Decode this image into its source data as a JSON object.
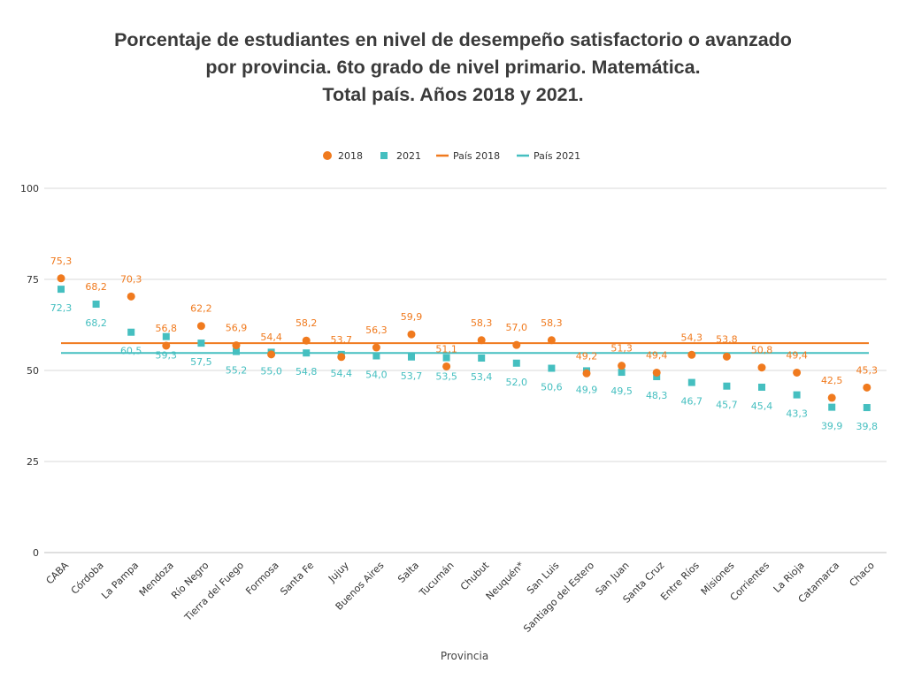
{
  "chart_data": {
    "type": "scatter",
    "title_lines": [
      "Porcentaje de estudiantes en nivel de desempeño satisfactorio o avanzado",
      "por provincia. 6to grado de nivel primario. Matemática.",
      "Total país. Años 2018 y 2021."
    ],
    "xlabel": "Provincia",
    "ylabel": "",
    "ylim": [
      0,
      100
    ],
    "yticks": [
      "0",
      "25",
      "50",
      "75",
      "100"
    ],
    "grid": true,
    "legend_position": "top",
    "categories": [
      "CABA",
      "Córdoba",
      "La Pampa",
      "Mendoza",
      "Río Negro",
      "Tierra del Fuego",
      "Formosa",
      "Santa Fe",
      "Jujuy",
      "Buenos Aires",
      "Salta",
      "Tucumán",
      "Chubut",
      "Neuquén*",
      "San Luis",
      "Santiago del Estero",
      "San Juan",
      "Santa Cruz",
      "Entre Ríos",
      "Misiones",
      "Corrientes",
      "La Rioja",
      "Catamarca",
      "Chaco"
    ],
    "series": [
      {
        "name": "2018",
        "marker": "circle",
        "color": "#f07a1e",
        "values": [
          75.3,
          68.2,
          70.3,
          56.8,
          62.2,
          56.9,
          54.4,
          58.2,
          53.7,
          56.3,
          59.9,
          51.1,
          58.3,
          57.0,
          58.3,
          49.2,
          51.3,
          49.4,
          54.3,
          53.8,
          50.8,
          49.4,
          42.5,
          45.3
        ],
        "labels": [
          "75,3",
          "68,2",
          "70,3",
          "56,8",
          "62,2",
          "56,9",
          "54,4",
          "58,2",
          "53,7",
          "56,3",
          "59,9",
          "51,1",
          "58,3",
          "57,0",
          "58,3",
          "49,2",
          "51,3",
          "49,4",
          "54,3",
          "53,8",
          "50,8",
          "49,4",
          "42,5",
          "45,3"
        ],
        "show_marker": [
          true,
          false,
          true,
          true,
          true,
          true,
          true,
          true,
          true,
          true,
          true,
          true,
          true,
          true,
          true,
          true,
          true,
          true,
          true,
          true,
          true,
          true,
          true,
          true
        ]
      },
      {
        "name": "2021",
        "marker": "square",
        "color": "#45bfc0",
        "values": [
          72.3,
          68.2,
          60.5,
          59.3,
          57.5,
          55.2,
          55.0,
          54.8,
          54.4,
          54.0,
          53.7,
          53.5,
          53.4,
          52.0,
          50.6,
          49.9,
          49.5,
          48.3,
          46.7,
          45.7,
          45.4,
          43.3,
          39.9,
          39.8
        ],
        "labels": [
          "72,3",
          "68,2",
          "60,5",
          "59,3",
          "57,5",
          "55,2",
          "55,0",
          "54,8",
          "54,4",
          "54,0",
          "53,7",
          "53,5",
          "53,4",
          "52,0",
          "50,6",
          "49,9",
          "49,5",
          "48,3",
          "46,7",
          "45,7",
          "45,4",
          "43,3",
          "39,9",
          "39,8"
        ]
      },
      {
        "name": "País 2018",
        "marker": "line",
        "color": "#f07a1e",
        "value": 57.5
      },
      {
        "name": "País 2021",
        "marker": "line",
        "color": "#45bfc0",
        "value": 54.8
      }
    ]
  }
}
